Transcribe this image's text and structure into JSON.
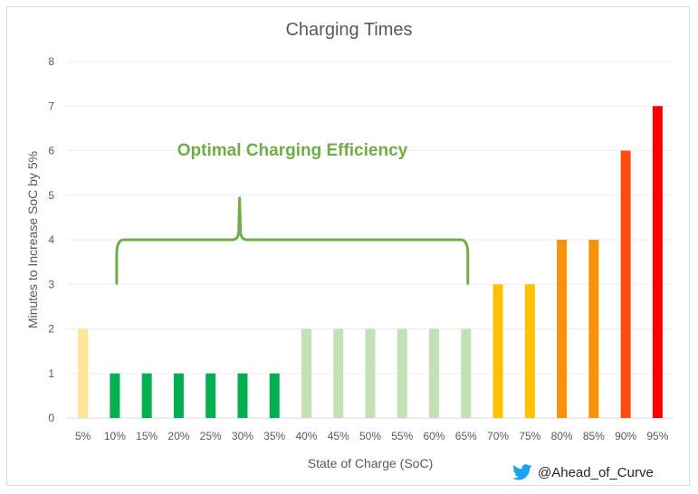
{
  "chart_data": {
    "type": "bar",
    "title": "Charging Times",
    "xlabel": "State of Charge (SoC)",
    "ylabel": "Minutes to Increase SoC by 5%",
    "ylim": [
      0,
      8
    ],
    "yticks": [
      "0",
      "1",
      "2",
      "3",
      "4",
      "5",
      "6",
      "7",
      "8"
    ],
    "grid": true,
    "categories": [
      "5%",
      "10%",
      "15%",
      "20%",
      "25%",
      "30%",
      "35%",
      "40%",
      "45%",
      "50%",
      "55%",
      "60%",
      "65%",
      "70%",
      "75%",
      "80%",
      "85%",
      "90%",
      "95%"
    ],
    "values": [
      2,
      1,
      1,
      1,
      1,
      1,
      1,
      2,
      2,
      2,
      2,
      2,
      2,
      3,
      3,
      4,
      4,
      6,
      7
    ],
    "colors": [
      "#ffe699",
      "#00b050",
      "#00b050",
      "#00b050",
      "#00b050",
      "#00b050",
      "#00b050",
      "#c5e0b4",
      "#c5e0b4",
      "#c5e0b4",
      "#c5e0b4",
      "#c5e0b4",
      "#c5e0b4",
      "#ffc000",
      "#ffc000",
      "#f79209",
      "#f79209",
      "#ff4b0f",
      "#ff0000"
    ],
    "annotation": {
      "text": "Optimal Charging Efficiency",
      "color": "#70ad47",
      "brace_from": "10%",
      "brace_to": "65%",
      "brace_low": 3,
      "brace_high": 4,
      "brace_peak": 5
    }
  },
  "credit": {
    "icon": "twitter-bird-icon",
    "icon_color": "#1da1f2",
    "text": "@Ahead_of_Curve"
  }
}
